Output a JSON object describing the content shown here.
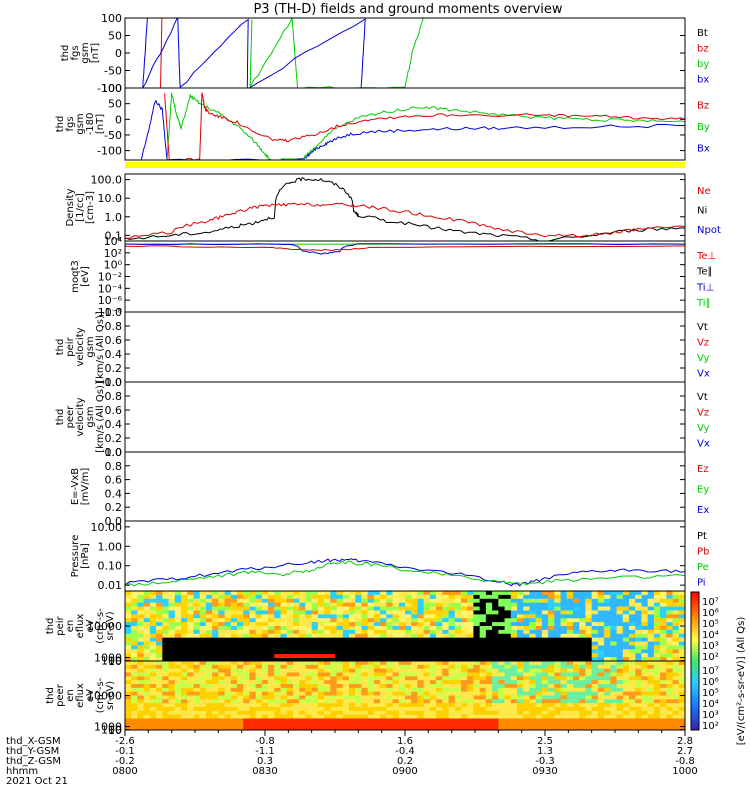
{
  "title": "P3 (TH-D) fields and ground moments overview",
  "chart_data": [
    {
      "type": "line",
      "ylabel": [
        "thd",
        "fgs",
        "gsm",
        "[nT]"
      ],
      "ylim": [
        -100,
        100
      ],
      "yticks": [
        "100",
        "50",
        "0",
        "-50",
        "-100"
      ],
      "legend": [
        {
          "name": "Bt",
          "color": "#000000"
        },
        {
          "name": "bz",
          "color": "#dd0000"
        },
        {
          "name": "by",
          "color": "#00cc00"
        },
        {
          "name": "bx",
          "color": "#0000dd"
        }
      ],
      "series": [
        {
          "name": "bz",
          "color": "#dd0000",
          "points": [
            [
              7.9,
              100
            ],
            [
              7.6,
              -100
            ]
          ]
        },
        {
          "name": "by",
          "color": "#00cc00",
          "points": [
            [
              27.2,
              100
            ],
            [
              26.8,
              -100
            ],
            [
              35.8,
              100
            ],
            [
              37.0,
              -100
            ],
            [
              60.0,
              -100
            ],
            [
              61.7,
              10
            ],
            [
              64.0,
              100
            ]
          ]
        },
        {
          "name": "bx",
          "color": "#0000dd",
          "points": [
            [
              4.8,
              100
            ],
            [
              3.8,
              -100
            ],
            [
              11.3,
              100
            ],
            [
              11.8,
              -100
            ],
            [
              26.4,
              100
            ],
            [
              26.2,
              -100
            ],
            [
              51.5,
              100
            ],
            [
              50.6,
              -100
            ]
          ]
        }
      ]
    },
    {
      "type": "line",
      "ylabel": [
        "thd",
        "fgs",
        "gsm",
        "-180",
        "[nT]"
      ],
      "ylim": [
        -130,
        100
      ],
      "yticks": [
        "100",
        "50",
        "0",
        "-50",
        "-100"
      ],
      "legend": [
        {
          "name": "Bz",
          "color": "#dd0000"
        },
        {
          "name": "By",
          "color": "#00cc00"
        },
        {
          "name": "Bx",
          "color": "#0000dd"
        }
      ],
      "series": [
        {
          "name": "Bx",
          "color": "#0000dd",
          "points": [
            [
              3.5,
              -130
            ],
            [
              5,
              -40
            ],
            [
              6.5,
              60
            ],
            [
              8,
              30
            ],
            [
              9,
              -130
            ],
            [
              38,
              -130
            ],
            [
              40,
              -105
            ],
            [
              42,
              -85
            ],
            [
              44,
              -70
            ],
            [
              48,
              -48
            ],
            [
              52,
              -40
            ],
            [
              60,
              -35
            ],
            [
              70,
              -30
            ],
            [
              80,
              -28
            ],
            [
              100,
              -24
            ],
            [
              120,
              -20
            ]
          ]
        },
        {
          "name": "By",
          "color": "#00cc00",
          "points": [
            [
              9,
              -130
            ],
            [
              10,
              80
            ],
            [
              11,
              20
            ],
            [
              12,
              -30
            ],
            [
              14,
              75
            ],
            [
              16,
              50
            ],
            [
              20,
              20
            ],
            [
              24,
              -20
            ],
            [
              28,
              -75
            ],
            [
              30,
              -110
            ],
            [
              31,
              -130
            ],
            [
              38,
              -130
            ],
            [
              40,
              -100
            ],
            [
              44,
              -40
            ],
            [
              50,
              5
            ],
            [
              56,
              25
            ],
            [
              64,
              40
            ],
            [
              70,
              30
            ],
            [
              80,
              15
            ],
            [
              90,
              5
            ],
            [
              100,
              0
            ],
            [
              110,
              -5
            ],
            [
              120,
              -8
            ]
          ]
        },
        {
          "name": "Bz",
          "color": "#dd0000",
          "points": [
            [
              8.5,
              80
            ],
            [
              9.5,
              -130
            ],
            [
              16,
              -130
            ],
            [
              16.5,
              90
            ],
            [
              17,
              40
            ],
            [
              18,
              20
            ],
            [
              20,
              10
            ],
            [
              24,
              -10
            ],
            [
              28,
              -45
            ],
            [
              32,
              -65
            ],
            [
              35,
              -70
            ],
            [
              40,
              -50
            ],
            [
              46,
              -20
            ],
            [
              52,
              0
            ],
            [
              60,
              10
            ],
            [
              70,
              15
            ],
            [
              90,
              12
            ],
            [
              100,
              10
            ],
            [
              110,
              5
            ],
            [
              120,
              0
            ]
          ]
        }
      ]
    },
    {
      "type": "line",
      "log": true,
      "ylabel": [
        "Density",
        "[1/cc]",
        "[cm-3]"
      ],
      "ylim": [
        0.05,
        200
      ],
      "yticks": [
        "100.0",
        "10.0",
        "1.0",
        "0.1"
      ],
      "legend": [
        {
          "name": "Ne",
          "color": "#dd0000"
        },
        {
          "name": "Ni",
          "color": "#000000"
        },
        {
          "name": "Npot",
          "color": "#0000dd"
        }
      ],
      "series": [
        {
          "name": "Ni",
          "color": "#000000",
          "points": [
            [
              0,
              0.06
            ],
            [
              10,
              0.1
            ],
            [
              18,
              0.15
            ],
            [
              24,
              0.3
            ],
            [
              28,
              0.5
            ],
            [
              32,
              1
            ],
            [
              35,
              60
            ],
            [
              38,
              110
            ],
            [
              42,
              100
            ],
            [
              46,
              40
            ],
            [
              49,
              2
            ],
            [
              50,
              1.2
            ],
            [
              56,
              0.6
            ],
            [
              64,
              0.3
            ],
            [
              72,
              0.15
            ],
            [
              80,
              0.1
            ],
            [
              90,
              0.05
            ],
            [
              100,
              0.1
            ],
            [
              110,
              0.2
            ],
            [
              120,
              0.25
            ]
          ]
        },
        {
          "name": "Ne",
          "color": "#dd0000",
          "points": [
            [
              0,
              0.07
            ],
            [
              10,
              0.15
            ],
            [
              18,
              0.6
            ],
            [
              22,
              1.2
            ],
            [
              26,
              2.5
            ],
            [
              30,
              4
            ],
            [
              35,
              4.5
            ],
            [
              40,
              4.5
            ],
            [
              46,
              4.5
            ],
            [
              50,
              4
            ],
            [
              56,
              2.5
            ],
            [
              64,
              1.2
            ],
            [
              72,
              0.6
            ],
            [
              80,
              0.2
            ],
            [
              90,
              0.1
            ],
            [
              100,
              0.1
            ],
            [
              110,
              0.2
            ],
            [
              120,
              0.3
            ]
          ]
        }
      ]
    },
    {
      "type": "line",
      "log": true,
      "ylabel": [
        "moqt3",
        "[eV]"
      ],
      "ylim": [
        1e-08,
        10000
      ],
      "yticks": [
        "10⁴",
        "10²",
        "10⁰",
        "10⁻²",
        "10⁻⁴",
        "10⁻⁶",
        "10⁻⁸"
      ],
      "legend": [
        {
          "name": "Te⊥",
          "color": "#dd0000"
        },
        {
          "name": "Te∥",
          "color": "#000000"
        },
        {
          "name": "Ti⊥",
          "color": "#0000dd"
        },
        {
          "name": "Ti∥",
          "color": "#00cc00"
        }
      ],
      "series": [
        {
          "name": "Ti∥",
          "color": "#00cc00",
          "points": [
            [
              0,
              3000
            ],
            [
              120,
              3000
            ]
          ]
        },
        {
          "name": "Ti⊥",
          "color": "#0000dd",
          "points": [
            [
              0,
              3000
            ],
            [
              35,
              3000
            ],
            [
              38,
              200
            ],
            [
              42,
              70
            ],
            [
              46,
              150
            ],
            [
              50,
              3000
            ],
            [
              120,
              3000
            ]
          ]
        },
        {
          "name": "Te⊥",
          "color": "#dd0000",
          "points": [
            [
              0,
              1500
            ],
            [
              30,
              800
            ],
            [
              38,
              300
            ],
            [
              46,
              300
            ],
            [
              54,
              800
            ],
            [
              120,
              1500
            ]
          ]
        }
      ]
    },
    {
      "type": "line",
      "ylabel": [
        "thd",
        "peir",
        "velocity",
        "gsm",
        "[km/s (All Qs)]"
      ],
      "ylim": [
        0,
        1
      ],
      "yticks": [
        "1.0",
        "0.8",
        "0.6",
        "0.4",
        "0.2",
        "0.0"
      ],
      "legend": [
        {
          "name": "Vt",
          "color": "#000000"
        },
        {
          "name": "Vz",
          "color": "#dd0000"
        },
        {
          "name": "Vy",
          "color": "#00cc00"
        },
        {
          "name": "Vx",
          "color": "#0000dd"
        }
      ],
      "series": []
    },
    {
      "type": "line",
      "ylabel": [
        "thd",
        "peer",
        "velocity",
        "gsm",
        "[km/s (All Qs)]"
      ],
      "ylim": [
        0,
        1
      ],
      "yticks": [
        "1.0",
        "0.8",
        "0.6",
        "0.4",
        "0.2",
        "0.0"
      ],
      "legend": [
        {
          "name": "Vt",
          "color": "#000000"
        },
        {
          "name": "Vz",
          "color": "#dd0000"
        },
        {
          "name": "Vy",
          "color": "#00cc00"
        },
        {
          "name": "Vx",
          "color": "#0000dd"
        }
      ],
      "series": []
    },
    {
      "type": "line",
      "ylabel": [
        "E=-VxB",
        "[mV/m]"
      ],
      "ylim": [
        0,
        1
      ],
      "yticks": [
        "1.0",
        "0.8",
        "0.6",
        "0.4",
        "0.2",
        "0.0"
      ],
      "legend": [
        {
          "name": "Ez",
          "color": "#dd0000"
        },
        {
          "name": "Ey",
          "color": "#00cc00"
        },
        {
          "name": "Ex",
          "color": "#0000dd"
        }
      ],
      "series": []
    },
    {
      "type": "line",
      "log": true,
      "ylabel": [
        "Pressure",
        "[nPa]"
      ],
      "ylim": [
        0.005,
        20
      ],
      "yticks": [
        "10.00",
        "1.00",
        "0.10",
        "0.01"
      ],
      "legend": [
        {
          "name": "Pt",
          "color": "#000000"
        },
        {
          "name": "Pb",
          "color": "#dd0000"
        },
        {
          "name": "Pe",
          "color": "#00cc00"
        },
        {
          "name": "Pi",
          "color": "#0000dd"
        }
      ],
      "series": [
        {
          "name": "Pi",
          "color": "#0000dd",
          "points": [
            [
              0,
              0.012
            ],
            [
              10,
              0.02
            ],
            [
              20,
              0.04
            ],
            [
              30,
              0.08
            ],
            [
              40,
              0.15
            ],
            [
              45,
              0.2
            ],
            [
              50,
              0.18
            ],
            [
              60,
              0.08
            ],
            [
              70,
              0.04
            ],
            [
              80,
              0.015
            ],
            [
              84,
              0.01
            ],
            [
              90,
              0.02
            ],
            [
              100,
              0.05
            ],
            [
              110,
              0.06
            ],
            [
              120,
              0.05
            ]
          ]
        },
        {
          "name": "Pe",
          "color": "#00cc00",
          "points": [
            [
              0,
              0.01
            ],
            [
              10,
              0.015
            ],
            [
              20,
              0.03
            ],
            [
              28,
              0.05
            ],
            [
              34,
              0.035
            ],
            [
              40,
              0.06
            ],
            [
              46,
              0.15
            ],
            [
              52,
              0.12
            ],
            [
              60,
              0.06
            ],
            [
              70,
              0.03
            ],
            [
              80,
              0.015
            ],
            [
              86,
              0.012
            ],
            [
              95,
              0.018
            ],
            [
              105,
              0.025
            ],
            [
              120,
              0.03
            ]
          ]
        }
      ]
    },
    {
      "type": "heatmap",
      "ylabel": [
        "thd",
        "peir",
        "en",
        "eflux",
        "eV",
        "(cm²-s-",
        "sr-eV)"
      ],
      "ylim": [
        10,
        20000
      ],
      "yticks": [
        "10000",
        "1000",
        "100",
        "10"
      ]
    },
    {
      "type": "heatmap",
      "ylabel": [
        "thd",
        "peer",
        "en",
        "eflux",
        "eV",
        "(cm²-s-",
        "sr-eV)"
      ],
      "ylim": [
        10,
        20000
      ],
      "yticks": [
        "10000",
        "1000",
        "100",
        "10"
      ]
    }
  ],
  "colorbar": {
    "ticks": [
      "10⁷",
      "10⁶",
      "10⁵",
      "10⁴",
      "10³",
      "10²"
    ],
    "label": "[eV/(cm²-s-sr-eV)] (All Qs)"
  },
  "x_axis": {
    "range_minutes": [
      0,
      120
    ],
    "ticks": [
      {
        "t": 0,
        "x_gsm": "-2.6",
        "y_gsm": "-0.1",
        "z_gsm": "-0.2",
        "hhmm": "0800"
      },
      {
        "t": 30,
        "x_gsm": "-0.8",
        "y_gsm": "-1.1",
        "z_gsm": "0.3",
        "hhmm": "0830"
      },
      {
        "t": 60,
        "x_gsm": "1.6",
        "y_gsm": "-0.4",
        "z_gsm": "0.2",
        "hhmm": "0900"
      },
      {
        "t": 90,
        "x_gsm": "2.5",
        "y_gsm": "1.3",
        "z_gsm": "-0.3",
        "hhmm": "0930"
      },
      {
        "t": 120,
        "x_gsm": "2.8",
        "y_gsm": "2.7",
        "z_gsm": "-0.8",
        "hhmm": "1000"
      }
    ],
    "row_labels": [
      "thd_X-GSM",
      "thd_Y-GSM",
      "thd_Z-GSM",
      "hhmm",
      "2021 Oct 21"
    ]
  }
}
